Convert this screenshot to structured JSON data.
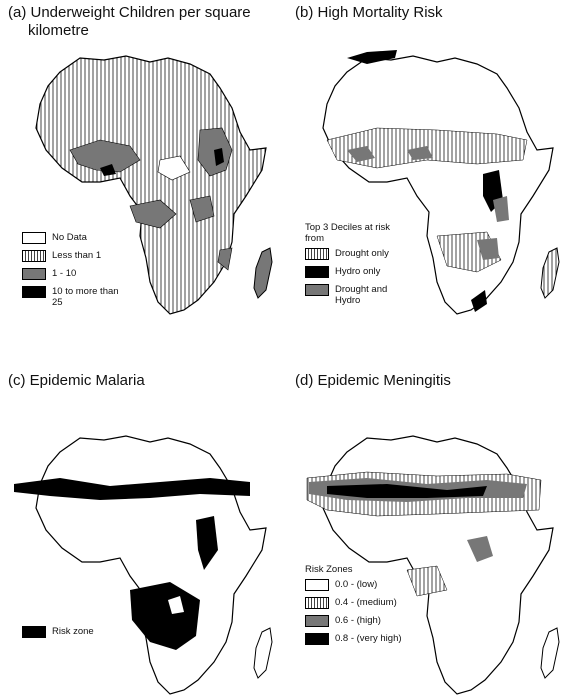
{
  "panels": {
    "a": {
      "title_line1": "(a) Underweight Children per square",
      "title_line2": "kilometre",
      "legend": [
        "No Data",
        "Less than 1",
        "1 - 10",
        "10 to more than 25"
      ]
    },
    "b": {
      "title": "(b) High Mortality Risk",
      "legend_heading": "Top 3 Deciles at risk from",
      "legend": [
        "Drought only",
        "Hydro only",
        "Drought and Hydro"
      ]
    },
    "c": {
      "title": "(c) Epidemic Malaria",
      "legend": [
        "Risk zone"
      ]
    },
    "d": {
      "title": "(d) Epidemic Meningitis",
      "legend_heading": "Risk Zones",
      "legend": [
        "0.0 - (low)",
        "0.4 - (medium)",
        "0.6 - (high)",
        "0.8 - (very high)"
      ]
    }
  },
  "colors": {
    "no_data": "#ffffff",
    "low": "#444444",
    "mid": "#777777",
    "high": "#000000"
  }
}
